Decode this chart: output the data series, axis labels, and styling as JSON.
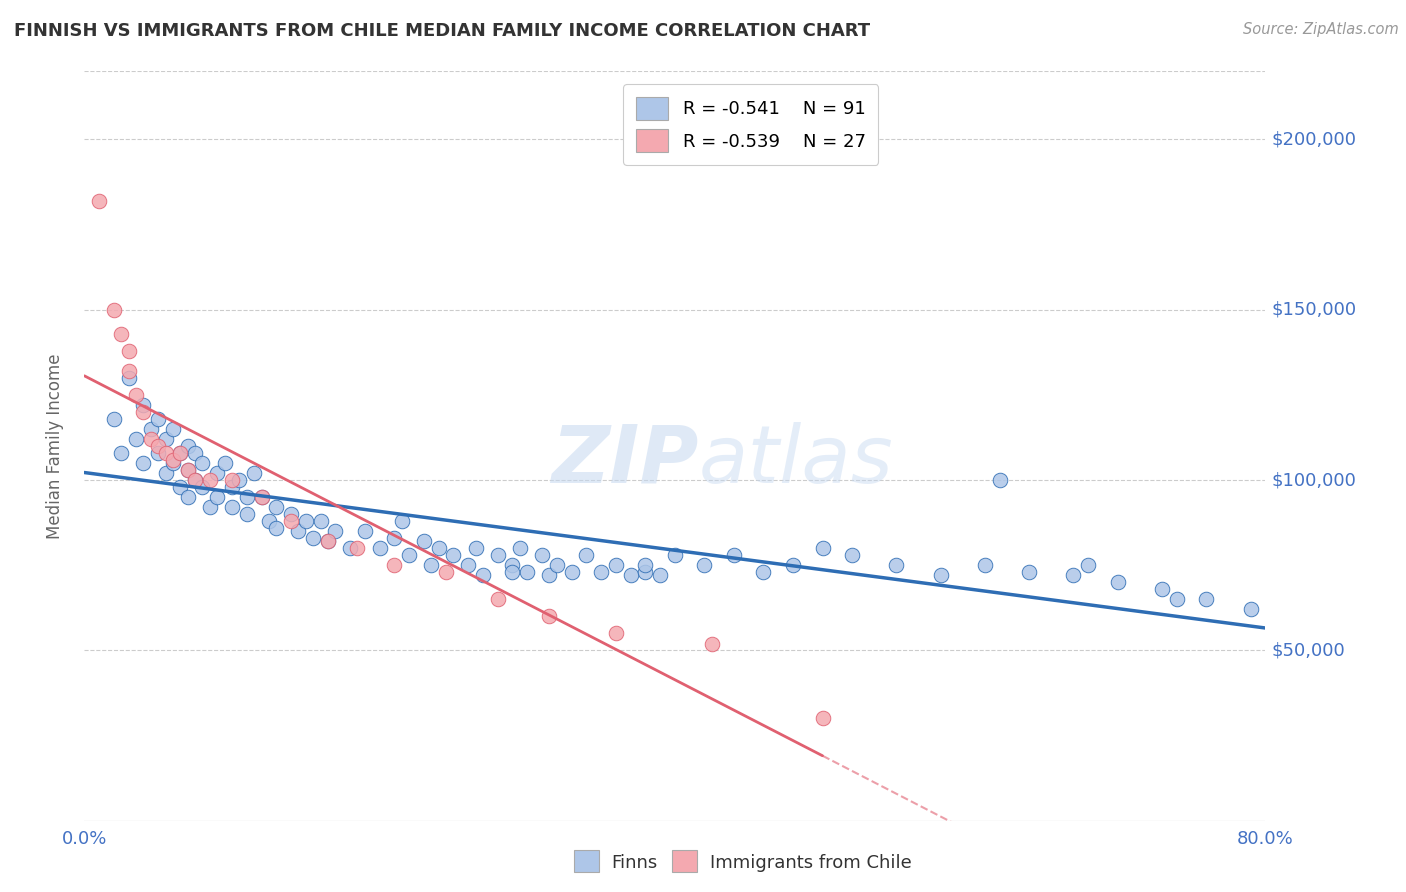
{
  "title": "FINNISH VS IMMIGRANTS FROM CHILE MEDIAN FAMILY INCOME CORRELATION CHART",
  "source": "Source: ZipAtlas.com",
  "xlabel": "",
  "ylabel": "Median Family Income",
  "xlim": [
    0.0,
    0.8
  ],
  "ylim": [
    0,
    220000
  ],
  "yticks": [
    0,
    50000,
    100000,
    150000,
    200000
  ],
  "ytick_labels": [
    "",
    "$50,000",
    "$100,000",
    "$150,000",
    "$200,000"
  ],
  "xticks": [
    0.0,
    0.1,
    0.2,
    0.3,
    0.4,
    0.5,
    0.6,
    0.7,
    0.8
  ],
  "xtick_labels": [
    "0.0%",
    "",
    "",
    "",
    "",
    "",
    "",
    "",
    "80.0%"
  ],
  "legend_r1": "R = -0.541",
  "legend_n1": "N = 91",
  "legend_r2": "R = -0.539",
  "legend_n2": "N = 27",
  "finn_color": "#aec6e8",
  "chile_color": "#f4a9b0",
  "finn_line_color": "#2e6db4",
  "chile_line_color": "#e06070",
  "watermark_zip": "ZIP",
  "watermark_atlas": "atlas",
  "background_color": "#ffffff",
  "grid_color": "#cccccc",
  "title_color": "#333333",
  "axis_label_color": "#666666",
  "ytick_color": "#4472c4",
  "xtick_color": "#4472c4",
  "finns_x": [
    0.02,
    0.025,
    0.03,
    0.035,
    0.04,
    0.04,
    0.045,
    0.05,
    0.05,
    0.055,
    0.055,
    0.06,
    0.06,
    0.065,
    0.065,
    0.07,
    0.07,
    0.07,
    0.075,
    0.075,
    0.08,
    0.08,
    0.085,
    0.09,
    0.09,
    0.095,
    0.1,
    0.1,
    0.105,
    0.11,
    0.11,
    0.115,
    0.12,
    0.125,
    0.13,
    0.13,
    0.14,
    0.145,
    0.15,
    0.155,
    0.16,
    0.165,
    0.17,
    0.18,
    0.19,
    0.2,
    0.21,
    0.215,
    0.22,
    0.23,
    0.235,
    0.24,
    0.25,
    0.26,
    0.265,
    0.27,
    0.28,
    0.29,
    0.295,
    0.3,
    0.31,
    0.315,
    0.32,
    0.33,
    0.34,
    0.35,
    0.36,
    0.37,
    0.38,
    0.39,
    0.4,
    0.42,
    0.44,
    0.46,
    0.48,
    0.5,
    0.52,
    0.55,
    0.58,
    0.61,
    0.64,
    0.67,
    0.7,
    0.73,
    0.76,
    0.79,
    0.62,
    0.68,
    0.74,
    0.38,
    0.29
  ],
  "finns_y": [
    118000,
    108000,
    130000,
    112000,
    105000,
    122000,
    115000,
    108000,
    118000,
    102000,
    112000,
    105000,
    115000,
    108000,
    98000,
    103000,
    110000,
    95000,
    108000,
    100000,
    105000,
    98000,
    92000,
    102000,
    95000,
    105000,
    98000,
    92000,
    100000,
    95000,
    90000,
    102000,
    95000,
    88000,
    92000,
    86000,
    90000,
    85000,
    88000,
    83000,
    88000,
    82000,
    85000,
    80000,
    85000,
    80000,
    83000,
    88000,
    78000,
    82000,
    75000,
    80000,
    78000,
    75000,
    80000,
    72000,
    78000,
    75000,
    80000,
    73000,
    78000,
    72000,
    75000,
    73000,
    78000,
    73000,
    75000,
    72000,
    73000,
    72000,
    78000,
    75000,
    78000,
    73000,
    75000,
    80000,
    78000,
    75000,
    72000,
    75000,
    73000,
    72000,
    70000,
    68000,
    65000,
    62000,
    100000,
    75000,
    65000,
    75000,
    73000
  ],
  "chile_x": [
    0.01,
    0.02,
    0.025,
    0.03,
    0.03,
    0.035,
    0.04,
    0.045,
    0.05,
    0.055,
    0.06,
    0.065,
    0.07,
    0.075,
    0.085,
    0.1,
    0.12,
    0.14,
    0.165,
    0.185,
    0.21,
    0.245,
    0.28,
    0.315,
    0.36,
    0.425,
    0.5
  ],
  "chile_y": [
    182000,
    150000,
    143000,
    138000,
    132000,
    125000,
    120000,
    112000,
    110000,
    108000,
    106000,
    108000,
    103000,
    100000,
    100000,
    100000,
    95000,
    88000,
    82000,
    80000,
    75000,
    73000,
    65000,
    60000,
    55000,
    52000,
    30000
  ]
}
